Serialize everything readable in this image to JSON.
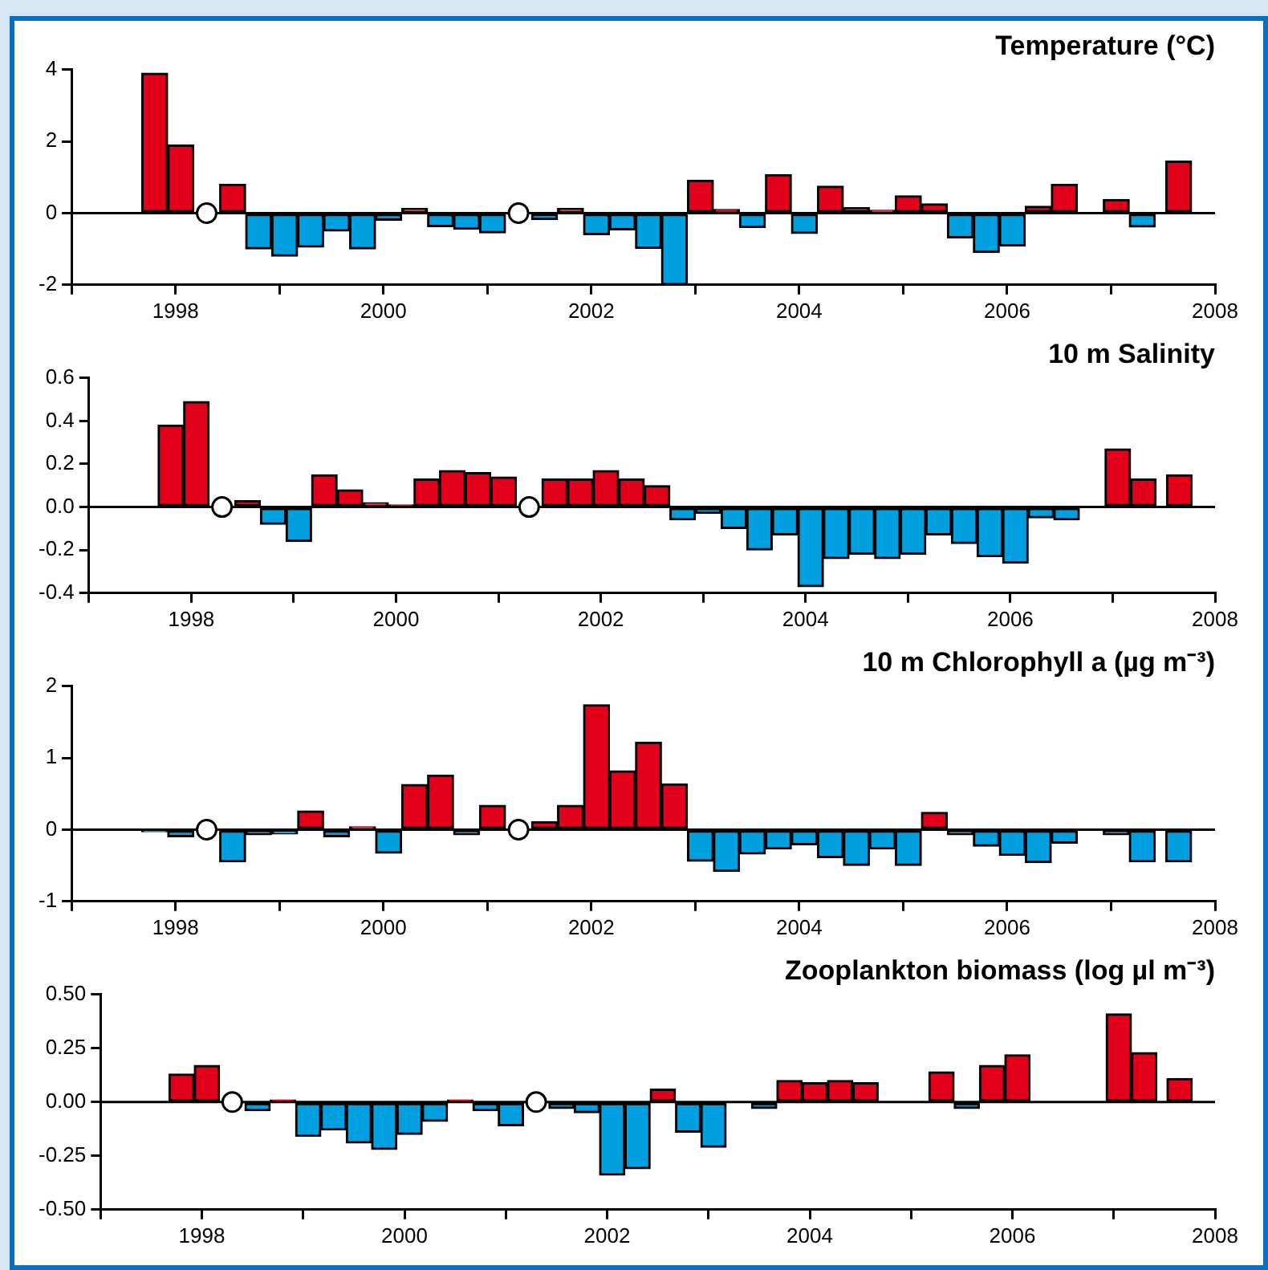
{
  "chart_data": [
    {
      "type": "bar",
      "title": "Temperature (°C)",
      "xlim": [
        1997,
        2008
      ],
      "xticks": [
        {
          "value": 1997,
          "label": null
        },
        1998,
        {
          "value": 1999,
          "label": null
        },
        2000,
        {
          "value": 2001,
          "label": null
        },
        2002,
        {
          "value": 2003,
          "label": null
        },
        2004,
        {
          "value": 2005,
          "label": null
        },
        2006,
        {
          "value": 2007,
          "label": null
        },
        2008
      ],
      "ylim": [
        -2,
        4
      ],
      "yticks": [
        -2,
        0,
        2,
        4
      ],
      "grid": false,
      "legend": false,
      "marker": "circle",
      "ref_lines": [
        {
          "axis": "y",
          "value": 0
        }
      ],
      "x": [
        1997.8,
        1998.05,
        1998.3,
        1998.55,
        1998.8,
        1999.05,
        1999.3,
        1999.55,
        1999.8,
        2000.05,
        2000.3,
        2000.55,
        2000.8,
        2001.05,
        2001.3,
        2001.55,
        2001.8,
        2002.05,
        2002.3,
        2002.55,
        2002.8,
        2003.05,
        2003.3,
        2003.55,
        2003.8,
        2004.05,
        2004.3,
        2004.55,
        2004.8,
        2005.05,
        2005.3,
        2005.55,
        2005.8,
        2006.05,
        2006.3,
        2006.55,
        2006.8,
        2007.05,
        2007.3,
        2007.65
      ],
      "series": [
        {
          "values": [
            3.9,
            1.9,
            null,
            0.8,
            -1.0,
            -1.2,
            -0.95,
            -0.5,
            -1.0,
            -0.2,
            0.13,
            -0.38,
            -0.45,
            -0.55,
            null,
            -0.18,
            0.13,
            -0.6,
            -0.47,
            -0.98,
            -2.0,
            0.92,
            0.1,
            -0.4,
            1.07,
            -0.57,
            0.75,
            0.15,
            0.08,
            0.48,
            0.26,
            -0.69,
            -1.1,
            -0.92,
            0.19,
            0.8,
            null,
            0.38,
            -0.39,
            1.45
          ],
          "colors": [
            "#e2001a",
            "#e2001a",
            null,
            "#e2001a",
            "#009fe0",
            "#009fe0",
            "#009fe0",
            "#009fe0",
            "#009fe0",
            "#009fe0",
            "#e2001a",
            "#009fe0",
            "#009fe0",
            "#009fe0",
            null,
            "#009fe0",
            "#e2001a",
            "#009fe0",
            "#009fe0",
            "#009fe0",
            "#009fe0",
            "#e2001a",
            "#e2001a",
            "#009fe0",
            "#e2001a",
            "#009fe0",
            "#e2001a",
            "#e2001a",
            "#e2001a",
            "#e2001a",
            "#e2001a",
            "#009fe0",
            "#009fe0",
            "#009fe0",
            "#e2001a",
            "#e2001a",
            null,
            "#e2001a",
            "#009fe0",
            "#e2001a"
          ]
        },
        {
          "type": "scatter",
          "values": [
            null,
            null,
            0,
            null,
            null,
            null,
            null,
            null,
            null,
            null,
            null,
            null,
            null,
            null,
            0,
            null,
            null,
            null,
            null,
            null,
            null,
            null,
            null,
            null,
            null,
            null,
            null,
            null,
            null,
            null,
            null,
            null,
            null,
            null,
            null,
            null,
            null,
            null,
            null,
            null
          ],
          "color": "#ffffff"
        }
      ]
    },
    {
      "type": "bar",
      "title": "10 m Salinity",
      "xlim": [
        1997,
        2008
      ],
      "xticks": [
        {
          "value": 1997,
          "label": null
        },
        1998,
        {
          "value": 1999,
          "label": null
        },
        2000,
        {
          "value": 2001,
          "label": null
        },
        2002,
        {
          "value": 2003,
          "label": null
        },
        2004,
        {
          "value": 2005,
          "label": null
        },
        2006,
        {
          "value": 2007,
          "label": null
        },
        2008
      ],
      "ylim": [
        -0.4,
        0.6
      ],
      "yticks": [
        -0.4,
        -0.2,
        {
          "value": 0,
          "label": "0.0"
        },
        0.2,
        0.4,
        0.6
      ],
      "grid": false,
      "legend": false,
      "marker": "circle",
      "ref_lines": [
        {
          "axis": "y",
          "value": 0
        }
      ],
      "x": [
        1997.8,
        1998.05,
        1998.3,
        1998.55,
        1998.8,
        1999.05,
        1999.3,
        1999.55,
        1999.8,
        2000.05,
        2000.3,
        2000.55,
        2000.8,
        2001.05,
        2001.3,
        2001.55,
        2001.8,
        2002.05,
        2002.3,
        2002.55,
        2002.8,
        2003.05,
        2003.3,
        2003.55,
        2003.8,
        2004.05,
        2004.3,
        2004.55,
        2004.8,
        2005.05,
        2005.3,
        2005.55,
        2005.8,
        2006.05,
        2006.3,
        2006.55,
        2006.8,
        2007.05,
        2007.3,
        2007.65
      ],
      "series": [
        {
          "values": [
            0.38,
            0.49,
            null,
            0.03,
            -0.08,
            -0.16,
            0.15,
            0.08,
            0.02,
            0.01,
            0.13,
            0.17,
            0.16,
            0.14,
            null,
            0.13,
            0.13,
            0.17,
            0.13,
            0.1,
            -0.06,
            -0.03,
            -0.1,
            -0.2,
            -0.13,
            -0.37,
            -0.24,
            -0.22,
            -0.24,
            -0.22,
            -0.13,
            -0.17,
            -0.23,
            -0.26,
            -0.05,
            -0.06,
            null,
            0.27,
            0.13,
            0.15
          ],
          "colors": [
            "#e2001a",
            "#e2001a",
            null,
            "#e2001a",
            "#009fe0",
            "#009fe0",
            "#e2001a",
            "#e2001a",
            "#e2001a",
            "#e2001a",
            "#e2001a",
            "#e2001a",
            "#e2001a",
            "#e2001a",
            null,
            "#e2001a",
            "#e2001a",
            "#e2001a",
            "#e2001a",
            "#e2001a",
            "#009fe0",
            "#009fe0",
            "#009fe0",
            "#009fe0",
            "#009fe0",
            "#009fe0",
            "#009fe0",
            "#009fe0",
            "#009fe0",
            "#009fe0",
            "#009fe0",
            "#009fe0",
            "#009fe0",
            "#009fe0",
            "#009fe0",
            "#009fe0",
            null,
            "#e2001a",
            "#e2001a",
            "#e2001a"
          ]
        },
        {
          "type": "scatter",
          "values": [
            null,
            null,
            0,
            null,
            null,
            null,
            null,
            null,
            null,
            null,
            null,
            null,
            null,
            null,
            0,
            null,
            null,
            null,
            null,
            null,
            null,
            null,
            null,
            null,
            null,
            null,
            null,
            null,
            null,
            null,
            null,
            null,
            null,
            null,
            null,
            null,
            null,
            null,
            null,
            null
          ],
          "color": "#ffffff"
        }
      ]
    },
    {
      "type": "bar",
      "title": "10 m Chlorophyll a (µg m⁻³)",
      "xlim": [
        1997,
        2008
      ],
      "xticks": [
        {
          "value": 1997,
          "label": null
        },
        1998,
        {
          "value": 1999,
          "label": null
        },
        2000,
        {
          "value": 2001,
          "label": null
        },
        2002,
        {
          "value": 2003,
          "label": null
        },
        2004,
        {
          "value": 2005,
          "label": null
        },
        2006,
        {
          "value": 2007,
          "label": null
        },
        2008
      ],
      "ylim": [
        -1,
        2
      ],
      "yticks": [
        -1,
        0,
        1,
        2
      ],
      "grid": false,
      "legend": false,
      "marker": "circle",
      "ref_lines": [
        {
          "axis": "y",
          "value": 0
        }
      ],
      "x": [
        1997.8,
        1998.05,
        1998.3,
        1998.55,
        1998.8,
        1999.05,
        1999.3,
        1999.55,
        1999.8,
        2000.05,
        2000.3,
        2000.55,
        2000.8,
        2001.05,
        2001.3,
        2001.55,
        2001.8,
        2002.05,
        2002.3,
        2002.55,
        2002.8,
        2003.05,
        2003.3,
        2003.55,
        2003.8,
        2004.05,
        2004.3,
        2004.55,
        2004.8,
        2005.05,
        2005.3,
        2005.55,
        2005.8,
        2006.05,
        2006.3,
        2006.55,
        2006.8,
        2007.05,
        2007.3,
        2007.65
      ],
      "series": [
        {
          "values": [
            -0.03,
            -0.1,
            null,
            -0.45,
            -0.07,
            -0.06,
            0.26,
            -0.1,
            0.04,
            -0.33,
            0.63,
            0.76,
            -0.07,
            0.34,
            null,
            0.11,
            0.34,
            1.74,
            0.82,
            1.22,
            0.64,
            -0.44,
            -0.58,
            -0.34,
            -0.27,
            -0.21,
            -0.39,
            -0.5,
            -0.27,
            -0.5,
            0.24,
            -0.07,
            -0.23,
            -0.36,
            -0.46,
            -0.19,
            null,
            -0.07,
            -0.45,
            -0.45
          ],
          "colors": [
            "#009fe0",
            "#009fe0",
            null,
            "#009fe0",
            "#009fe0",
            "#009fe0",
            "#e2001a",
            "#009fe0",
            "#e2001a",
            "#009fe0",
            "#e2001a",
            "#e2001a",
            "#009fe0",
            "#e2001a",
            null,
            "#e2001a",
            "#e2001a",
            "#e2001a",
            "#e2001a",
            "#e2001a",
            "#e2001a",
            "#009fe0",
            "#009fe0",
            "#009fe0",
            "#009fe0",
            "#009fe0",
            "#009fe0",
            "#009fe0",
            "#009fe0",
            "#009fe0",
            "#e2001a",
            "#009fe0",
            "#009fe0",
            "#009fe0",
            "#009fe0",
            "#009fe0",
            null,
            "#009fe0",
            "#009fe0",
            "#009fe0"
          ]
        },
        {
          "type": "scatter",
          "values": [
            null,
            null,
            0,
            null,
            null,
            null,
            null,
            null,
            null,
            null,
            null,
            null,
            null,
            null,
            0,
            null,
            null,
            null,
            null,
            null,
            null,
            null,
            null,
            null,
            null,
            null,
            null,
            null,
            null,
            null,
            null,
            null,
            null,
            null,
            null,
            null,
            null,
            null,
            null,
            null
          ],
          "color": "#ffffff"
        }
      ]
    },
    {
      "type": "bar",
      "title": "Zooplankton biomass (log µl m⁻³)",
      "xlim": [
        1997,
        2008
      ],
      "xticks": [
        {
          "value": 1997,
          "label": null
        },
        1998,
        {
          "value": 1999,
          "label": null
        },
        2000,
        {
          "value": 2001,
          "label": null
        },
        2002,
        {
          "value": 2003,
          "label": null
        },
        2004,
        {
          "value": 2005,
          "label": null
        },
        2006,
        {
          "value": 2007,
          "label": null
        },
        2008
      ],
      "ylim": [
        -0.5,
        0.5
      ],
      "yticks": [
        {
          "value": -0.5,
          "label": "-0.50"
        },
        {
          "value": -0.25,
          "label": "-0.25"
        },
        {
          "value": 0,
          "label": "0.00"
        },
        {
          "value": 0.25,
          "label": "0.25"
        },
        {
          "value": 0.5,
          "label": "0.50"
        }
      ],
      "grid": false,
      "legend": false,
      "marker": "circle",
      "ref_lines": [
        {
          "axis": "y",
          "value": 0
        }
      ],
      "x": [
        1997.8,
        1998.05,
        1998.3,
        1998.55,
        1998.8,
        1999.05,
        1999.3,
        1999.55,
        1999.8,
        2000.05,
        2000.3,
        2000.55,
        2000.8,
        2001.05,
        2001.3,
        2001.55,
        2001.8,
        2002.05,
        2002.3,
        2002.55,
        2002.8,
        2003.05,
        2003.3,
        2003.55,
        2003.8,
        2004.05,
        2004.3,
        2004.55,
        2004.8,
        2005.05,
        2005.3,
        2005.55,
        2005.8,
        2006.05,
        2006.3,
        2006.55,
        2006.8,
        2007.05,
        2007.3,
        2007.65
      ],
      "series": [
        {
          "values": [
            0.13,
            0.17,
            null,
            -0.04,
            0.01,
            -0.16,
            -0.13,
            -0.19,
            -0.22,
            -0.15,
            -0.09,
            0.01,
            -0.04,
            -0.11,
            null,
            -0.03,
            -0.05,
            -0.34,
            -0.31,
            0.06,
            -0.14,
            -0.21,
            null,
            -0.03,
            0.1,
            0.09,
            0.1,
            0.09,
            null,
            null,
            0.14,
            -0.03,
            0.17,
            0.22,
            null,
            null,
            null,
            0.41,
            0.23,
            0.11
          ],
          "colors": [
            "#e2001a",
            "#e2001a",
            null,
            "#009fe0",
            "#e2001a",
            "#009fe0",
            "#009fe0",
            "#009fe0",
            "#009fe0",
            "#009fe0",
            "#009fe0",
            "#e2001a",
            "#009fe0",
            "#009fe0",
            null,
            "#009fe0",
            "#009fe0",
            "#009fe0",
            "#009fe0",
            "#e2001a",
            "#009fe0",
            "#009fe0",
            null,
            "#009fe0",
            "#e2001a",
            "#e2001a",
            "#e2001a",
            "#e2001a",
            null,
            null,
            "#e2001a",
            "#009fe0",
            "#e2001a",
            "#e2001a",
            null,
            null,
            null,
            "#e2001a",
            "#e2001a",
            "#e2001a"
          ]
        },
        {
          "type": "scatter",
          "values": [
            null,
            null,
            0,
            null,
            null,
            null,
            null,
            null,
            null,
            null,
            null,
            null,
            null,
            null,
            0,
            null,
            null,
            null,
            null,
            null,
            null,
            null,
            null,
            null,
            null,
            null,
            null,
            null,
            null,
            null,
            null,
            null,
            null,
            null,
            null,
            null,
            null,
            null,
            null,
            null
          ],
          "color": "#ffffff"
        }
      ]
    }
  ]
}
